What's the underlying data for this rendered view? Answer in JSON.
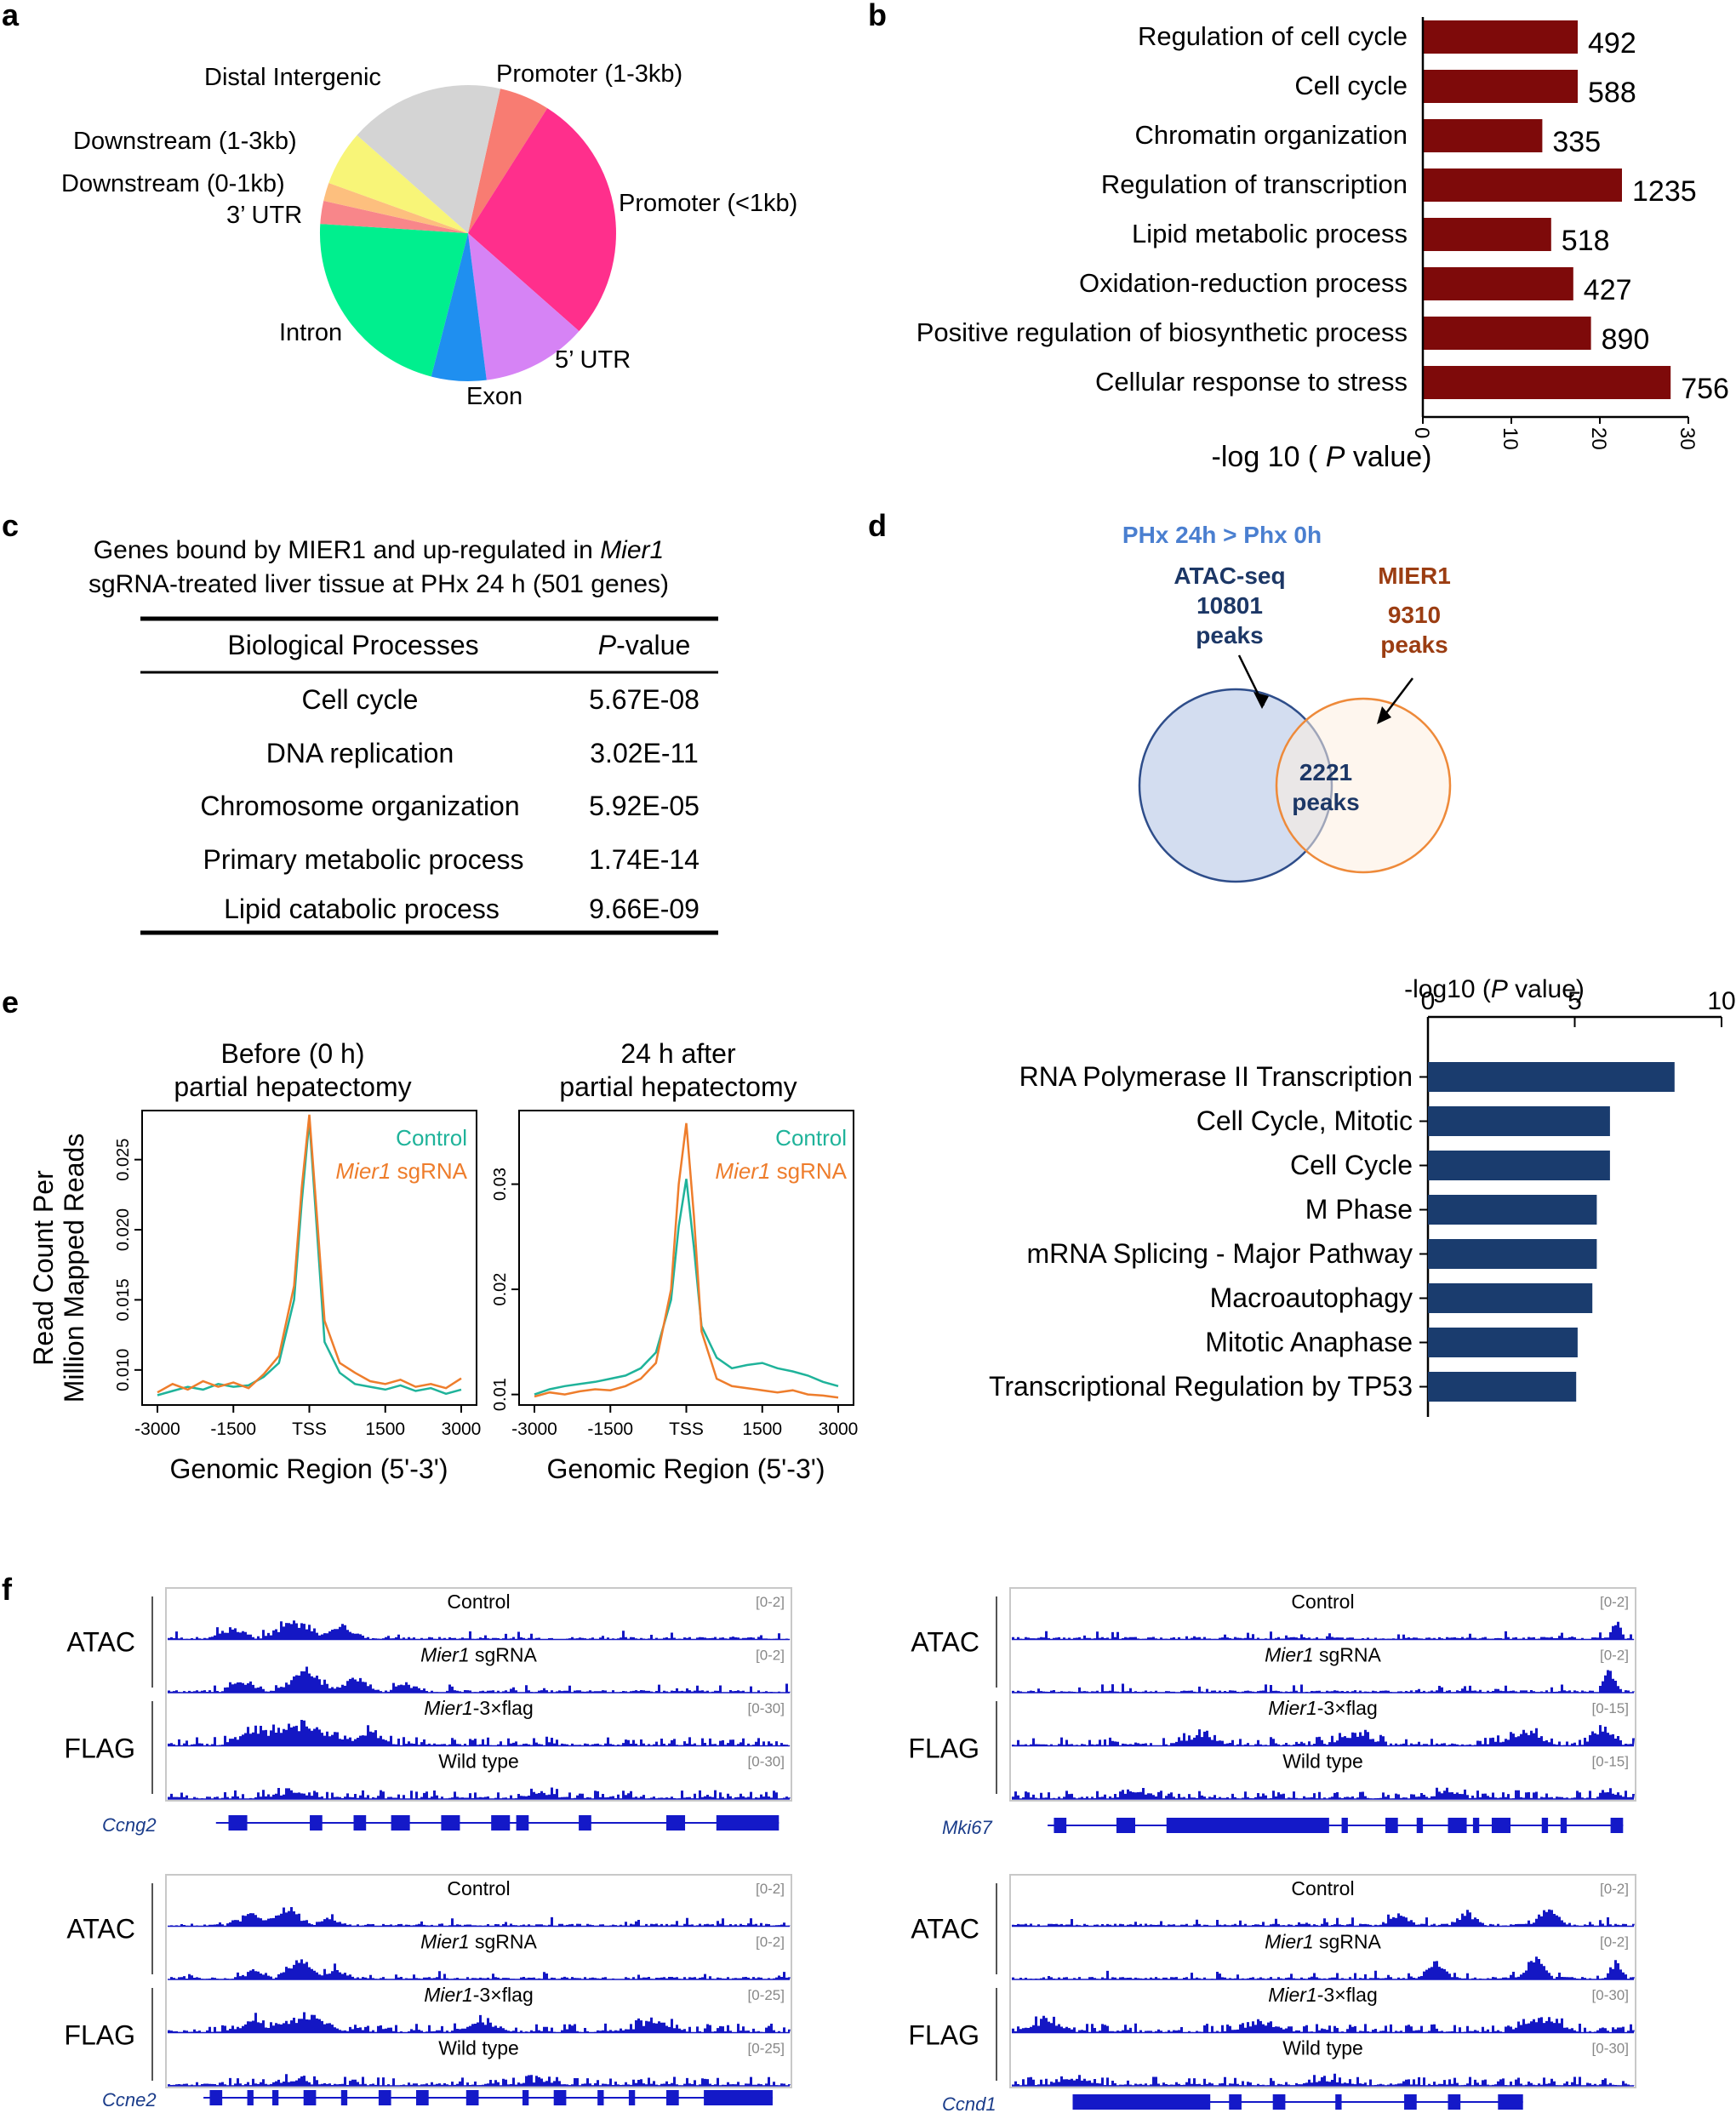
{
  "panels": {
    "a": "a",
    "b": "b",
    "c": "c",
    "d": "d",
    "e": "e",
    "f": "f"
  },
  "chart_data": [
    {
      "panel": "a",
      "type": "pie",
      "categories": [
        "Promoter (1-3kb)",
        "Promoter (<1kb)",
        "5’ UTR",
        "Exon",
        "Intron",
        "3’ UTR",
        "Downstream (0-1kb)",
        "Downstream (1-3kb)",
        "Distal Intergenic"
      ],
      "values": [
        5.5,
        27.5,
        11.5,
        6,
        22,
        2.5,
        2,
        6,
        17
      ],
      "colors": [
        "#f87c72",
        "#ff2f8c",
        "#d683f5",
        "#1f8ff0",
        "#00ef8e",
        "#f8868a",
        "#fdbf7e",
        "#f8f578",
        "#d4d4d4"
      ]
    },
    {
      "panel": "b",
      "type": "bar",
      "orientation": "horizontal",
      "categories": [
        "Regulation of cell cycle",
        "Cell cycle",
        "Chromatin organization",
        "Regulation of transcription",
        "Lipid metabolic process",
        "Oxidation-reduction process",
        "Positive regulation of biosynthetic process",
        "Cellular response to stress"
      ],
      "values": [
        17.5,
        17.5,
        13.5,
        22.5,
        14.5,
        17,
        19,
        28
      ],
      "data_labels": [
        "492",
        "588",
        "335",
        "1235",
        "518",
        "427",
        "890",
        "756"
      ],
      "xlabel_prefix": "-log 10 ( ",
      "xlabel_italic": "P",
      "xlabel_suffix": " value)",
      "xlim": [
        0,
        30
      ],
      "ticks": [
        "0",
        "10",
        "20",
        "30"
      ],
      "color": "#7e0a0a"
    },
    {
      "panel": "e-left",
      "type": "line",
      "title_line1": "Before (0 h)",
      "title_line2": "partial hepatectomy",
      "x": [
        -3000,
        -2700,
        -2400,
        -2100,
        -1800,
        -1500,
        -1200,
        -900,
        -600,
        -300,
        -150,
        0,
        150,
        300,
        600,
        900,
        1200,
        1500,
        1800,
        2100,
        2400,
        2700,
        3000
      ],
      "series": [
        {
          "name": "Control",
          "color": "#1fb39a",
          "values": [
            0.0082,
            0.0085,
            0.0088,
            0.0086,
            0.009,
            0.0088,
            0.0089,
            0.0095,
            0.0105,
            0.015,
            0.022,
            0.0278,
            0.02,
            0.012,
            0.0098,
            0.009,
            0.0088,
            0.0086,
            0.0089,
            0.0085,
            0.0087,
            0.0083,
            0.0086
          ]
        },
        {
          "name": "Mier1 sgRNA",
          "color": "#ee7d2c",
          "values": [
            0.0084,
            0.009,
            0.0086,
            0.0092,
            0.0088,
            0.0091,
            0.0087,
            0.0097,
            0.011,
            0.016,
            0.023,
            0.0282,
            0.021,
            0.0135,
            0.0105,
            0.0098,
            0.0092,
            0.009,
            0.0093,
            0.0088,
            0.009,
            0.0087,
            0.0094
          ]
        }
      ],
      "ylim": [
        0.0075,
        0.0285
      ],
      "yticks": [
        "0.010",
        "0.015",
        "0.020",
        "0.025"
      ],
      "xticks": [
        "-3000",
        "-1500",
        "TSS",
        "1500",
        "3000"
      ],
      "xlabel": "Genomic Region (5'-3')",
      "ylabel_line1": "Read Count Per",
      "ylabel_line2": "Million Mapped Reads"
    },
    {
      "panel": "e-middle",
      "type": "line",
      "title_line1": "24 h after",
      "title_line2": "partial hepatectomy",
      "x": [
        -3000,
        -2700,
        -2400,
        -2100,
        -1800,
        -1500,
        -1200,
        -900,
        -600,
        -300,
        -150,
        0,
        150,
        300,
        600,
        900,
        1200,
        1500,
        1800,
        2100,
        2400,
        2700,
        3000
      ],
      "series": [
        {
          "name": "Control",
          "color": "#1fb39a",
          "values": [
            0.01,
            0.0105,
            0.0108,
            0.011,
            0.0112,
            0.0115,
            0.0118,
            0.0125,
            0.014,
            0.019,
            0.026,
            0.0305,
            0.024,
            0.0165,
            0.0135,
            0.0125,
            0.0128,
            0.013,
            0.0125,
            0.0122,
            0.0118,
            0.0112,
            0.0108
          ]
        },
        {
          "name": "Mier1 sgRNA",
          "color": "#ee7d2c",
          "values": [
            0.0098,
            0.0102,
            0.01,
            0.0103,
            0.0105,
            0.0104,
            0.0108,
            0.0115,
            0.013,
            0.02,
            0.03,
            0.0358,
            0.027,
            0.016,
            0.0115,
            0.0108,
            0.0106,
            0.0104,
            0.0102,
            0.0104,
            0.01,
            0.0099,
            0.0097
          ]
        }
      ],
      "ylim": [
        0.009,
        0.037
      ],
      "yticks": [
        "0.01",
        "0.02",
        "0.03"
      ],
      "xticks": [
        "-3000",
        "-1500",
        "TSS",
        "1500",
        "3000"
      ],
      "xlabel": "Genomic Region (5'-3')"
    },
    {
      "panel": "e-right",
      "type": "bar",
      "orientation": "horizontal",
      "categories": [
        "RNA Polymerase II Transcription",
        "Cell Cycle, Mitotic",
        "Cell Cycle",
        "M Phase",
        "mRNA Splicing - Major Pathway",
        "Macroautophagy",
        "Mitotic Anaphase",
        "Transcriptional Regulation by TP53"
      ],
      "values": [
        8.4,
        6.2,
        6.2,
        5.75,
        5.75,
        5.6,
        5.1,
        5.05
      ],
      "xlim": [
        0,
        10
      ],
      "ticks": [
        "0",
        "5",
        "10"
      ],
      "xlabel_prefix": "-log10 (",
      "xlabel_italic": "P",
      "xlabel_suffix": " value)",
      "color": "#1a3c6e"
    }
  ],
  "panel_c": {
    "title_line1_prefix": "Genes bound by MIER1 and up-regulated in ",
    "title_line1_italic": "Mier1",
    "title_line2": "sgRNA-treated liver tissue at PHx 24 h (501 genes)",
    "header_process": "Biological Processes",
    "header_p_italic": "P",
    "header_p_suffix": "-value",
    "rows": [
      {
        "process": "Cell cycle",
        "pvalue": "5.67E-08"
      },
      {
        "process": "DNA replication",
        "pvalue": "3.02E-11"
      },
      {
        "process": "Chromosome organization",
        "pvalue": "5.92E-05"
      },
      {
        "process": "Primary metabolic process",
        "pvalue": "1.74E-14"
      },
      {
        "process": "Lipid catabolic process",
        "pvalue": "9.66E-09"
      }
    ]
  },
  "panel_d": {
    "heading": "PHx 24h > Phx 0h",
    "atac_label": "ATAC-seq",
    "atac_count": "10801",
    "atac_unit": "peaks",
    "mier1_label": "MIER1",
    "mier1_count": "9310",
    "mier1_unit": "peaks",
    "overlap_count": "2221",
    "overlap_unit": "peaks",
    "colors": {
      "heading": "#4a7fd0",
      "atac": "#1c3766",
      "mier1": "#9b3d12",
      "atac_fill": "#d3ddf0",
      "atac_stroke": "#2e4d8a",
      "mier1_fill": "#fdeee0",
      "mier1_stroke": "#ee8a3a"
    }
  },
  "panel_e_legend": {
    "control": "Control",
    "sg_italic": "Mier1",
    "sg_suffix": " sgRNA",
    "tss_label": "TSS"
  },
  "panel_f": {
    "group_atac": "ATAC",
    "group_flag": "FLAG",
    "track_control": "Control",
    "track_sg_italic": "Mier1",
    "track_sg_suffix": " sgRNA",
    "track_flag_italic": "Mier1",
    "track_flag_suffix": "-3×flag",
    "track_wt": "Wild type",
    "track_color": "#1417c4",
    "gene_color": "#1419c8",
    "loci": [
      {
        "gene": "Ccng2",
        "atac_range": "[0-2]",
        "flag_range": "[0-30]"
      },
      {
        "gene": "Mki67",
        "atac_range": "[0-2]",
        "flag_range": "[0-15]"
      },
      {
        "gene": "Ccne2",
        "atac_range": "[0-2]",
        "flag_range": "[0-25]"
      },
      {
        "gene": "Ccnd1",
        "atac_range": "[0-2]",
        "flag_range": "[0-30]"
      }
    ]
  }
}
